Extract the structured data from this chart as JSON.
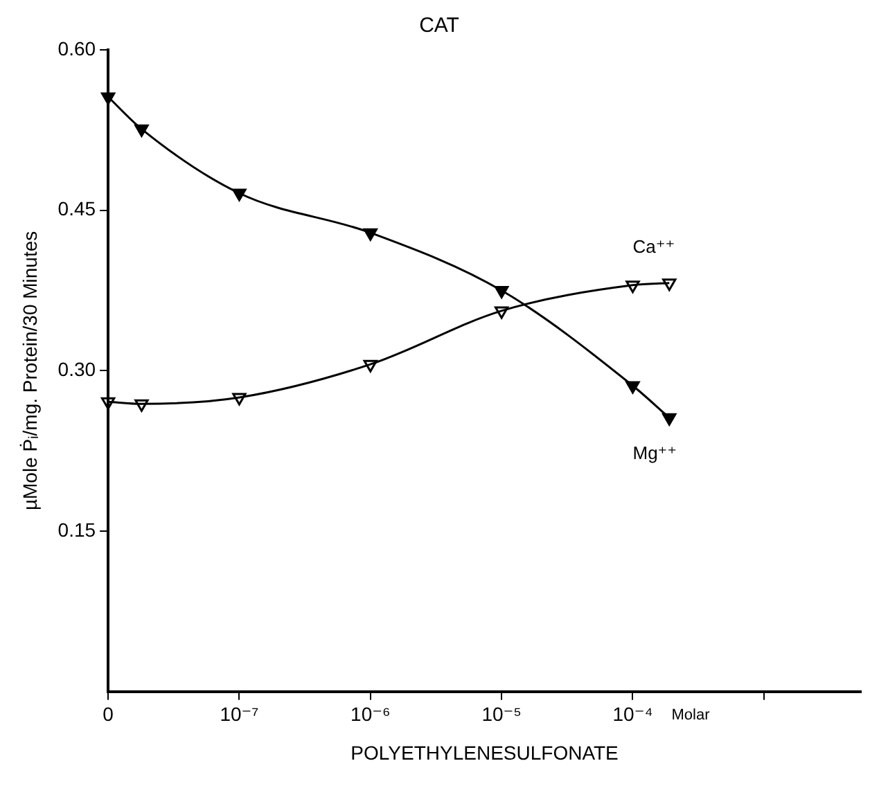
{
  "chart_data": {
    "type": "line",
    "title": "CAT",
    "xlabel": "POLYETHYLENESULFONATE",
    "ylabel": "µMole Ṗᵢ/mg. Protein/30 Minutes",
    "annotations": [
      "Molar"
    ],
    "x": [
      1e-08,
      1.8e-08,
      1e-07,
      1e-06,
      1e-05,
      0.0001,
      0.00019
    ],
    "series": [
      {
        "name": "Mg⁺⁺",
        "color": "#000000",
        "values": [
          0.556,
          0.526,
          0.466,
          0.429,
          0.375,
          0.286,
          0.256
        ]
      },
      {
        "name": "Ca⁺⁺",
        "color": "#000000",
        "values": [
          0.271,
          0.269,
          0.275,
          0.306,
          0.356,
          0.38,
          0.382
        ]
      }
    ],
    "log": "x",
    "xlim": [
      1e-08,
      0.0055
    ],
    "xticks": [
      {
        "value": 1e-08,
        "label": "0"
      },
      {
        "value": 1e-07,
        "label": "10⁻⁷"
      },
      {
        "value": 1e-06,
        "label": "10⁻⁶"
      },
      {
        "value": 1e-05,
        "label": "10⁻⁵"
      },
      {
        "value": 0.0001,
        "label": "10⁻⁴"
      },
      {
        "value": 0.001,
        "label": null
      }
    ],
    "ylim": [
      0,
      0.6
    ],
    "yticks": [
      {
        "value": 0.15,
        "label": "0.15"
      },
      {
        "value": 0.3,
        "label": "0.30"
      },
      {
        "value": 0.45,
        "label": "0.45"
      },
      {
        "value": 0.6,
        "label": "0.60"
      }
    ],
    "grid": false,
    "legend": false,
    "marker": "triangle",
    "line_style": "solid"
  }
}
